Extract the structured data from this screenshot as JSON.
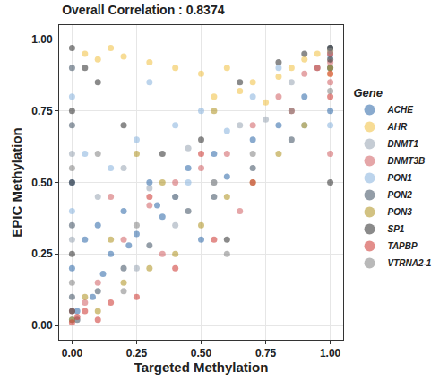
{
  "chart_data": {
    "type": "scatter",
    "title": "Overall Correlation : 0.8374",
    "x_label": "Targeted Methylation",
    "y_label": "EPIC Methylation",
    "legend_title": "Gene",
    "xlim": [
      -0.05,
      1.05
    ],
    "ylim": [
      -0.05,
      1.05
    ],
    "xticks": [
      {
        "value": 0,
        "label": "0.00"
      },
      {
        "value": 0.25,
        "label": "0.25"
      },
      {
        "value": 0.5,
        "label": "0.50"
      },
      {
        "value": 0.75,
        "label": "0.75"
      },
      {
        "value": 1,
        "label": "1.00"
      }
    ],
    "yticks": [
      {
        "value": 0,
        "label": "0.00"
      },
      {
        "value": 0.25,
        "label": "0.25"
      },
      {
        "value": 0.5,
        "label": "0.50"
      },
      {
        "value": 0.75,
        "label": "0.75"
      },
      {
        "value": 1,
        "label": "1.00"
      }
    ],
    "grid": true,
    "legend": "right",
    "marker": "circle",
    "series": [
      {
        "name": "ACHE",
        "color": "#3a72ad",
        "x": [
          0,
          0,
          0,
          0.02,
          0.05,
          0.1,
          0.15,
          0.2,
          0.25,
          0.3,
          0.35,
          0.4,
          0.45,
          0.5,
          0.55,
          0.6,
          0.7,
          0.8,
          0.9,
          1,
          1,
          0.12,
          0.22,
          0.33,
          0.08
        ],
        "values": [
          0.02,
          0.2,
          0.5,
          0.05,
          0.3,
          0.35,
          0.25,
          0.4,
          0.32,
          0.5,
          0.38,
          0.45,
          0.55,
          0.3,
          0.6,
          0.52,
          0.65,
          0.7,
          0.8,
          0.9,
          0.75,
          0.18,
          0.28,
          0.42,
          0.1
        ]
      },
      {
        "name": "AHR",
        "color": "#f2c44e",
        "x": [
          0.05,
          0.1,
          0.2,
          0.3,
          0.4,
          0.5,
          0.6,
          0.7,
          0.8,
          0.85,
          0.9,
          0.95,
          1,
          1,
          0.75,
          0.65,
          0.15,
          0.55
        ],
        "values": [
          0.95,
          0.93,
          0.94,
          0.92,
          0.9,
          0.88,
          0.9,
          0.85,
          0.87,
          0.9,
          0.93,
          0.95,
          0.96,
          0.88,
          0.78,
          0.82,
          0.97,
          0.8
        ]
      },
      {
        "name": "DNMT1",
        "color": "#9eaab8",
        "x": [
          0,
          0,
          0.1,
          0.2,
          0.3,
          0.45,
          0.55,
          0.65,
          0.75,
          0.85,
          0.95,
          1,
          1,
          0.4,
          0.25
        ],
        "values": [
          0.6,
          0.3,
          0.45,
          0.55,
          0.48,
          0.62,
          0.5,
          0.7,
          0.72,
          0.85,
          0.9,
          0.95,
          0.97,
          0.35,
          0.2
        ]
      },
      {
        "name": "DNMT3B",
        "color": "#d36b6e",
        "x": [
          0,
          0.05,
          0.1,
          0.2,
          0.3,
          0.4,
          0.5,
          0.6,
          0.7,
          0.8,
          0.9,
          1,
          1,
          1,
          0.35,
          0.15,
          0.65
        ],
        "values": [
          0.05,
          0.08,
          0.15,
          0.3,
          0.42,
          0.5,
          0.55,
          0.6,
          0.7,
          0.8,
          0.88,
          0.92,
          0.85,
          0.6,
          0.25,
          0.45,
          0.4
        ]
      },
      {
        "name": "PON1",
        "color": "#8fb8e0",
        "x": [
          0,
          0,
          0.05,
          0.15,
          0.25,
          0.4,
          0.5,
          0.6,
          0.7,
          0.8,
          0.9,
          1,
          1,
          0.45,
          0.3
        ],
        "values": [
          0.8,
          0.4,
          0.6,
          0.55,
          0.65,
          0.7,
          0.75,
          0.68,
          0.8,
          0.9,
          0.7,
          0.94,
          0.7,
          0.5,
          0.85
        ]
      },
      {
        "name": "PON2",
        "color": "#4b5b6c",
        "x": [
          0,
          0,
          0,
          0,
          0.02,
          0.1,
          0.2,
          0.3,
          0.45,
          0.55,
          0.7,
          0.85,
          1,
          1
        ],
        "values": [
          0.1,
          0.35,
          0.7,
          0.9,
          0.02,
          0.12,
          0.2,
          0.28,
          0.4,
          0.45,
          0.55,
          0.65,
          0.97,
          0.9
        ]
      },
      {
        "name": "PON3",
        "color": "#b49a2e",
        "x": [
          0,
          0.05,
          0.1,
          0.2,
          0.3,
          0.4,
          0.5,
          0.6,
          0.7,
          0.8,
          0.9,
          1,
          0.25,
          0.35,
          0.15,
          0.55
        ],
        "values": [
          0.02,
          0.1,
          0.05,
          0.15,
          0.2,
          0.25,
          0.35,
          0.45,
          0.5,
          0.6,
          0.7,
          0.9,
          0.6,
          0.5,
          0.3,
          0.75
        ]
      },
      {
        "name": "SP1",
        "color": "#3c3c3c",
        "x": [
          0,
          0,
          0,
          0,
          0,
          0.05,
          0.1,
          0.2,
          0.35,
          0.5,
          0.65,
          0.8,
          0.9,
          1,
          1,
          1,
          0.6
        ],
        "values": [
          0.97,
          0.75,
          0.5,
          0.25,
          0.05,
          0.9,
          0.85,
          0.7,
          0.6,
          0.65,
          0.85,
          0.92,
          0.95,
          0.97,
          0.93,
          0.5,
          0.3
        ]
      },
      {
        "name": "TAPBP",
        "color": "#d0433e",
        "x": [
          0,
          0.02,
          0.05,
          0.1,
          0.15,
          0.25,
          0.4,
          0.55,
          0.7,
          0.85,
          0.95,
          1,
          1,
          1,
          0.3,
          0.5
        ],
        "values": [
          0.01,
          0.03,
          0.05,
          0.02,
          0.08,
          0.1,
          0.2,
          0.3,
          0.5,
          0.75,
          0.9,
          0.95,
          0.88,
          0.8,
          0.45,
          0.6
        ]
      },
      {
        "name": "VTRNA2-1",
        "color": "#8a8a8a",
        "x": [
          0,
          0,
          0.1,
          0.25,
          0.4,
          0.55,
          0.7,
          0.85,
          1,
          1,
          0.2,
          0.6
        ],
        "values": [
          0.55,
          0.15,
          0.6,
          0.35,
          0.45,
          0.5,
          0.6,
          0.75,
          0.96,
          0.82,
          0.12,
          0.25
        ]
      }
    ]
  }
}
